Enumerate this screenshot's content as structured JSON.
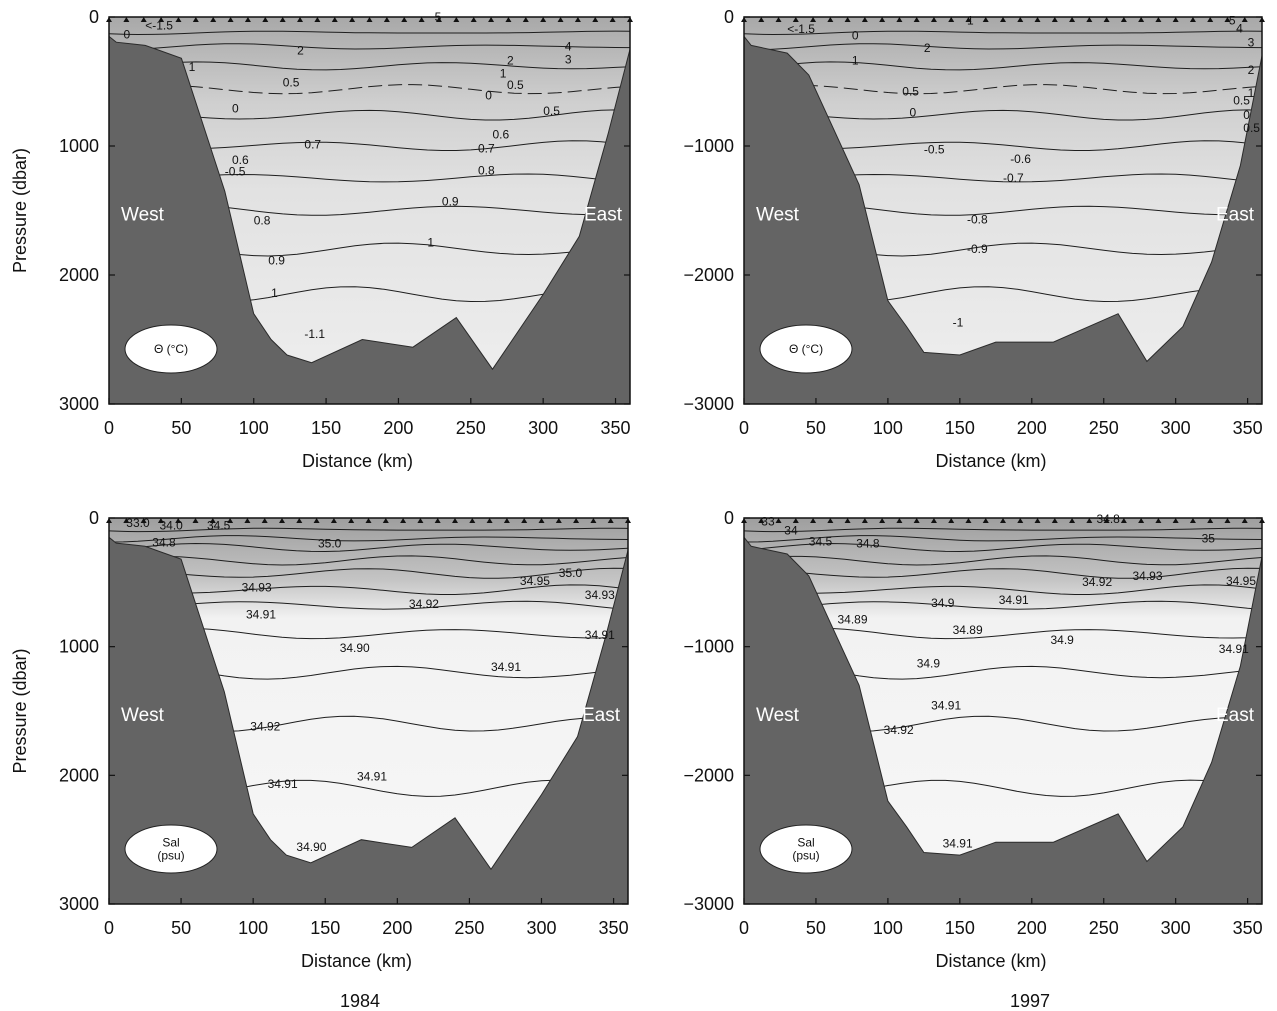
{
  "figure": {
    "year_labels": [
      "1984",
      "1997"
    ]
  },
  "chart_data": [
    {
      "type": "heatmap",
      "panel": "theta-1984",
      "xlabel": "Distance (km)",
      "ylabel": "Pressure (dbar)",
      "xlim": [
        0,
        360
      ],
      "ylim": [
        3000,
        0
      ],
      "x_ticks": [
        0,
        50,
        100,
        150,
        200,
        250,
        300,
        350
      ],
      "y_ticks": [
        "0",
        "1000",
        "2000",
        "3000"
      ],
      "side_labels": [
        "West",
        "East"
      ],
      "legend": "Θ (°C)",
      "contours": [
        {
          "value": "<-1.5",
          "x": 25,
          "y": 95
        },
        {
          "value": "0",
          "x": 10,
          "y": 165
        },
        {
          "value": "5",
          "x": 225,
          "y": 30
        },
        {
          "value": "4",
          "x": 315,
          "y": 260
        },
        {
          "value": "3",
          "x": 315,
          "y": 360
        },
        {
          "value": "2",
          "x": 130,
          "y": 290
        },
        {
          "value": "2",
          "x": 275,
          "y": 370
        },
        {
          "value": "1",
          "x": 55,
          "y": 420
        },
        {
          "value": "1",
          "x": 270,
          "y": 470
        },
        {
          "value": "0.5",
          "x": 120,
          "y": 540
        },
        {
          "value": "0.5",
          "x": 275,
          "y": 560
        },
        {
          "value": "0",
          "x": 85,
          "y": 740
        },
        {
          "value": "0",
          "x": 260,
          "y": 640
        },
        {
          "value": "0.5",
          "x": 300,
          "y": 760
        },
        {
          "value": "0.6",
          "x": 265,
          "y": 940
        },
        {
          "value": "0.7",
          "x": 135,
          "y": 1020
        },
        {
          "value": "0.7",
          "x": 255,
          "y": 1050
        },
        {
          "value": "0.8",
          "x": 255,
          "y": 1220
        },
        {
          "value": "0.9",
          "x": 230,
          "y": 1460
        },
        {
          "value": "1",
          "x": 220,
          "y": 1780
        },
        {
          "value": "-0.5",
          "x": 80,
          "y": 1230
        },
        {
          "value": "0.6",
          "x": 85,
          "y": 1140
        },
        {
          "value": "0.8",
          "x": 100,
          "y": 1610
        },
        {
          "value": "0.9",
          "x": 110,
          "y": 1920
        },
        {
          "value": "1",
          "x": 112,
          "y": 2170
        },
        {
          "value": "-1.1",
          "x": 135,
          "y": 2490
        }
      ]
    },
    {
      "type": "heatmap",
      "panel": "theta-1997",
      "xlabel": "Distance (km)",
      "ylabel": "",
      "xlim": [
        0,
        360
      ],
      "ylim": [
        -3000,
        0
      ],
      "x_ticks": [
        0,
        50,
        100,
        150,
        200,
        250,
        300,
        350
      ],
      "y_ticks": [
        "0",
        "−1000",
        "−2000",
        "−3000"
      ],
      "side_labels": [
        "West",
        "East"
      ],
      "legend": "Θ (°C)",
      "contours": [
        {
          "value": "<-1.5",
          "x": 30,
          "y": 125
        },
        {
          "value": "0",
          "x": 75,
          "y": 175
        },
        {
          "value": "1",
          "x": 155,
          "y": 60
        },
        {
          "value": "5",
          "x": 337,
          "y": 60
        },
        {
          "value": "4",
          "x": 342,
          "y": 120
        },
        {
          "value": "3",
          "x": 350,
          "y": 230
        },
        {
          "value": "2",
          "x": 350,
          "y": 440
        },
        {
          "value": "2",
          "x": 125,
          "y": 270
        },
        {
          "value": "1",
          "x": 75,
          "y": 370
        },
        {
          "value": "1",
          "x": 350,
          "y": 620
        },
        {
          "value": "0.5",
          "x": 110,
          "y": 610
        },
        {
          "value": "0.5",
          "x": 340,
          "y": 680
        },
        {
          "value": "0",
          "x": 115,
          "y": 770
        },
        {
          "value": "0",
          "x": 347,
          "y": 790
        },
        {
          "value": "0.5",
          "x": 347,
          "y": 890
        },
        {
          "value": "-0.5",
          "x": 125,
          "y": 1060
        },
        {
          "value": "-0.6",
          "x": 185,
          "y": 1130
        },
        {
          "value": "-0.7",
          "x": 180,
          "y": 1280
        },
        {
          "value": "-0.8",
          "x": 155,
          "y": 1600
        },
        {
          "value": "-0.9",
          "x": 155,
          "y": 1830
        },
        {
          "value": "-1",
          "x": 145,
          "y": 2400
        }
      ]
    },
    {
      "type": "heatmap",
      "panel": "salinity-1984",
      "xlabel": "Distance (km)",
      "ylabel": "Pressure (dbar)",
      "xlim": [
        0,
        360
      ],
      "ylim": [
        3000,
        0
      ],
      "x_ticks": [
        0,
        50,
        100,
        150,
        200,
        250,
        300,
        350
      ],
      "y_ticks": [
        "0",
        "1000",
        "2000",
        "3000"
      ],
      "side_labels": [
        "West",
        "East"
      ],
      "legend": [
        "Sal",
        "(psu)"
      ],
      "contours": [
        {
          "value": "33.0",
          "x": 12,
          "y": 70
        },
        {
          "value": "34.0",
          "x": 35,
          "y": 90
        },
        {
          "value": "34.5",
          "x": 68,
          "y": 90
        },
        {
          "value": "34.8",
          "x": 30,
          "y": 220
        },
        {
          "value": "35.0",
          "x": 145,
          "y": 230
        },
        {
          "value": "35.0",
          "x": 312,
          "y": 460
        },
        {
          "value": "34.95",
          "x": 285,
          "y": 520
        },
        {
          "value": "34.93",
          "x": 92,
          "y": 570
        },
        {
          "value": "34.93",
          "x": 330,
          "y": 630
        },
        {
          "value": "34.92",
          "x": 208,
          "y": 700
        },
        {
          "value": "34.91",
          "x": 95,
          "y": 780
        },
        {
          "value": "34.91",
          "x": 330,
          "y": 940
        },
        {
          "value": "34.90",
          "x": 160,
          "y": 1040
        },
        {
          "value": "34.91",
          "x": 265,
          "y": 1190
        },
        {
          "value": "34.92",
          "x": 98,
          "y": 1650
        },
        {
          "value": "34.91",
          "x": 110,
          "y": 2100
        },
        {
          "value": "34.91",
          "x": 172,
          "y": 2040
        },
        {
          "value": "34.90",
          "x": 130,
          "y": 2590
        }
      ]
    },
    {
      "type": "heatmap",
      "panel": "salinity-1997",
      "xlabel": "Distance (km)",
      "ylabel": "",
      "xlim": [
        0,
        360
      ],
      "ylim": [
        -3000,
        0
      ],
      "x_ticks": [
        0,
        50,
        100,
        150,
        200,
        250,
        300,
        350
      ],
      "y_ticks": [
        "0",
        "−1000",
        "−2000",
        "−3000"
      ],
      "side_labels": [
        "West",
        "East"
      ],
      "legend": [
        "Sal",
        "(psu)"
      ],
      "contours": [
        {
          "value": "33",
          "x": 12,
          "y": 60
        },
        {
          "value": "34",
          "x": 28,
          "y": 130
        },
        {
          "value": "34.8",
          "x": 245,
          "y": 40
        },
        {
          "value": "34.5",
          "x": 45,
          "y": 215
        },
        {
          "value": "34.8",
          "x": 78,
          "y": 230
        },
        {
          "value": "35",
          "x": 318,
          "y": 190
        },
        {
          "value": "34.93",
          "x": 270,
          "y": 480
        },
        {
          "value": "34.95",
          "x": 335,
          "y": 520
        },
        {
          "value": "34.92",
          "x": 235,
          "y": 530
        },
        {
          "value": "34.9",
          "x": 130,
          "y": 690
        },
        {
          "value": "34.91",
          "x": 177,
          "y": 670
        },
        {
          "value": "34.89",
          "x": 65,
          "y": 820
        },
        {
          "value": "34.89",
          "x": 145,
          "y": 900
        },
        {
          "value": "34.9",
          "x": 213,
          "y": 980
        },
        {
          "value": "34.91",
          "x": 330,
          "y": 1050
        },
        {
          "value": "34.9",
          "x": 120,
          "y": 1160
        },
        {
          "value": "34.91",
          "x": 130,
          "y": 1490
        },
        {
          "value": "34.92",
          "x": 97,
          "y": 1680
        },
        {
          "value": "34.91",
          "x": 138,
          "y": 2560
        }
      ]
    }
  ]
}
